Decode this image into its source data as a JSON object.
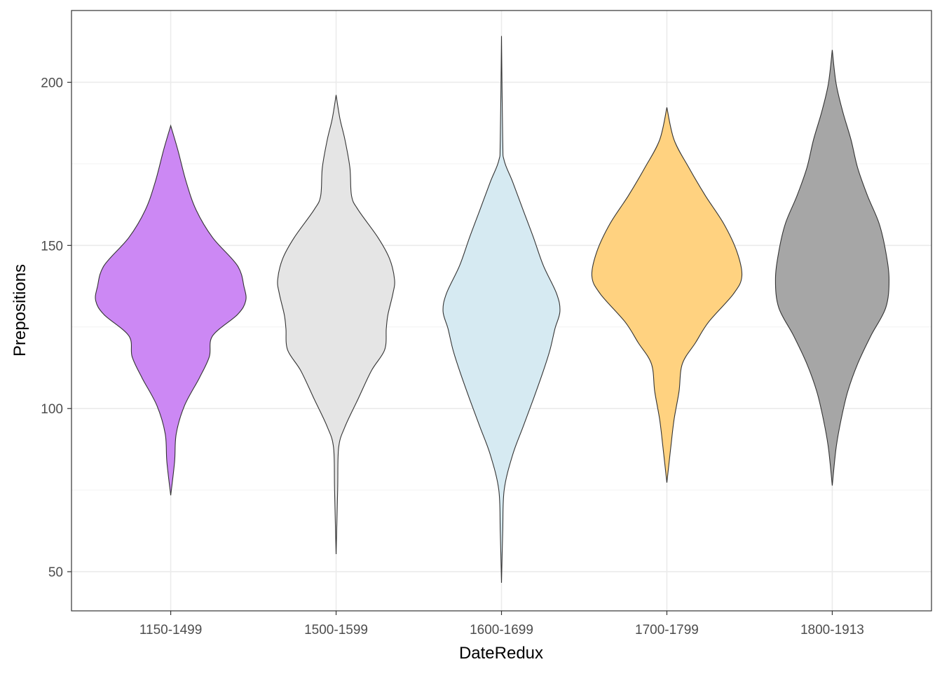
{
  "chart_data": {
    "type": "violin",
    "title": "",
    "xlabel": "DateRedux",
    "ylabel": "Prepositions",
    "categories": [
      "1150-1499",
      "1500-1599",
      "1600-1699",
      "1700-1799",
      "1800-1913"
    ],
    "ylim": [
      38,
      222
    ],
    "yticks": [
      50,
      100,
      150,
      200
    ],
    "yticks_minor": [
      75,
      125,
      175
    ],
    "grid": true,
    "legend": "none",
    "series": [
      {
        "name": "1150-1499",
        "color": "#CC88F4",
        "profile_y": [
          186.7,
          179.2,
          169.5,
          160.9,
          152.4,
          143.8,
          137.3,
          133.0,
          128.8,
          122.3,
          115.9,
          109.4,
          100.9,
          92.3,
          83.7,
          73.4
        ],
        "half_width": [
          0,
          0.04,
          0.09,
          0.15,
          0.25,
          0.4,
          0.44,
          0.45,
          0.4,
          0.25,
          0.23,
          0.17,
          0.08,
          0.03,
          0.02,
          0
        ]
      },
      {
        "name": "1500-1599",
        "color": "#E5E5E5",
        "profile_y": [
          196.1,
          188.8,
          182.4,
          173.8,
          165.2,
          160.9,
          152.4,
          145.9,
          139.5,
          135.2,
          128.8,
          124.5,
          118.0,
          111.6,
          103.0,
          94.4,
          88.0,
          75.1,
          55.4
        ],
        "half_width": [
          0,
          0.02,
          0.05,
          0.08,
          0.09,
          0.13,
          0.25,
          0.32,
          0.35,
          0.34,
          0.31,
          0.3,
          0.29,
          0.21,
          0.13,
          0.05,
          0.012,
          0.006,
          0
        ]
      },
      {
        "name": "1600-1699",
        "color": "#D6EAF2",
        "profile_y": [
          214.2,
          182.4,
          176.0,
          169.5,
          160.9,
          152.4,
          143.8,
          135.2,
          129.8,
          124.5,
          118.0,
          111.6,
          103.0,
          94.4,
          85.8,
          75.1,
          62.2,
          46.6
        ],
        "half_width": [
          0,
          0.004,
          0.013,
          0.064,
          0.127,
          0.19,
          0.25,
          0.33,
          0.35,
          0.32,
          0.29,
          0.25,
          0.19,
          0.127,
          0.064,
          0.013,
          0.004,
          0
        ]
      },
      {
        "name": "1700-1799",
        "color": "#FFD280",
        "profile_y": [
          192.3,
          182.4,
          173.8,
          165.2,
          156.7,
          148.1,
          140.6,
          135.2,
          126.6,
          120.2,
          113.7,
          105.2,
          96.6,
          88.0,
          77.3
        ],
        "half_width": [
          0,
          0.04,
          0.13,
          0.23,
          0.34,
          0.42,
          0.45,
          0.4,
          0.25,
          0.17,
          0.09,
          0.07,
          0.04,
          0.02,
          0
        ]
      },
      {
        "name": "1800-1913",
        "color": "#A6A6A6",
        "profile_y": [
          209.9,
          199.6,
          191.0,
          182.4,
          173.8,
          165.2,
          156.7,
          148.1,
          139.5,
          130.9,
          122.3,
          113.7,
          105.2,
          96.6,
          88.0,
          76.4
        ],
        "half_width": [
          0,
          0.02,
          0.06,
          0.11,
          0.15,
          0.21,
          0.28,
          0.32,
          0.34,
          0.32,
          0.23,
          0.15,
          0.09,
          0.05,
          0.02,
          0
        ]
      }
    ]
  }
}
